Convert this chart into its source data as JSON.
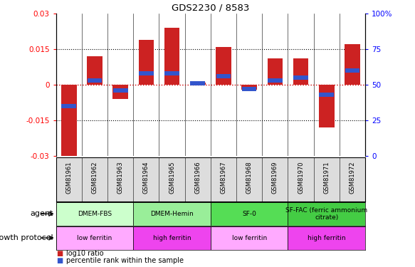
{
  "title": "GDS2230 / 8583",
  "samples": [
    "GSM81961",
    "GSM81962",
    "GSM81963",
    "GSM81964",
    "GSM81965",
    "GSM81966",
    "GSM81967",
    "GSM81968",
    "GSM81969",
    "GSM81970",
    "GSM81971",
    "GSM81972"
  ],
  "log10_ratio": [
    -0.03,
    0.012,
    -0.006,
    0.019,
    0.024,
    0.001,
    0.016,
    -0.002,
    0.011,
    0.011,
    -0.018,
    0.017
  ],
  "percentile_rank": [
    35,
    53,
    46,
    58,
    58,
    51,
    56,
    47,
    53,
    55,
    43,
    60
  ],
  "ylim": [
    -0.03,
    0.03
  ],
  "yticks": [
    -0.03,
    -0.015,
    0,
    0.015,
    0.03
  ],
  "ytick_labels_left": [
    "-0.03",
    "-0.015",
    "0",
    "0.015",
    "0.03"
  ],
  "ytick_labels_right": [
    "0",
    "25",
    "50",
    "75",
    "100%"
  ],
  "bar_color_red": "#cc2222",
  "bar_color_blue": "#3355cc",
  "agent_groups": [
    {
      "label": "DMEM-FBS",
      "start": 0,
      "end": 3,
      "color": "#ccffcc"
    },
    {
      "label": "DMEM-Hemin",
      "start": 3,
      "end": 6,
      "color": "#99ee99"
    },
    {
      "label": "SF-0",
      "start": 6,
      "end": 9,
      "color": "#55dd55"
    },
    {
      "label": "SF-FAC (ferric ammonium\ncitrate)",
      "start": 9,
      "end": 12,
      "color": "#44cc44"
    }
  ],
  "growth_groups": [
    {
      "label": "low ferritin",
      "start": 0,
      "end": 3,
      "color": "#ffaaff"
    },
    {
      "label": "high ferritin",
      "start": 3,
      "end": 6,
      "color": "#ee44ee"
    },
    {
      "label": "low ferritin",
      "start": 6,
      "end": 9,
      "color": "#ffaaff"
    },
    {
      "label": "high ferritin",
      "start": 9,
      "end": 12,
      "color": "#ee44ee"
    }
  ],
  "legend_red_label": "log10 ratio",
  "legend_blue_label": "percentile rank within the sample",
  "agent_label": "agent",
  "growth_label": "growth protocol",
  "zero_line_color": "#cc0000",
  "background_color": "#ffffff",
  "bar_width": 0.6,
  "gsm_bg": "#dddddd"
}
